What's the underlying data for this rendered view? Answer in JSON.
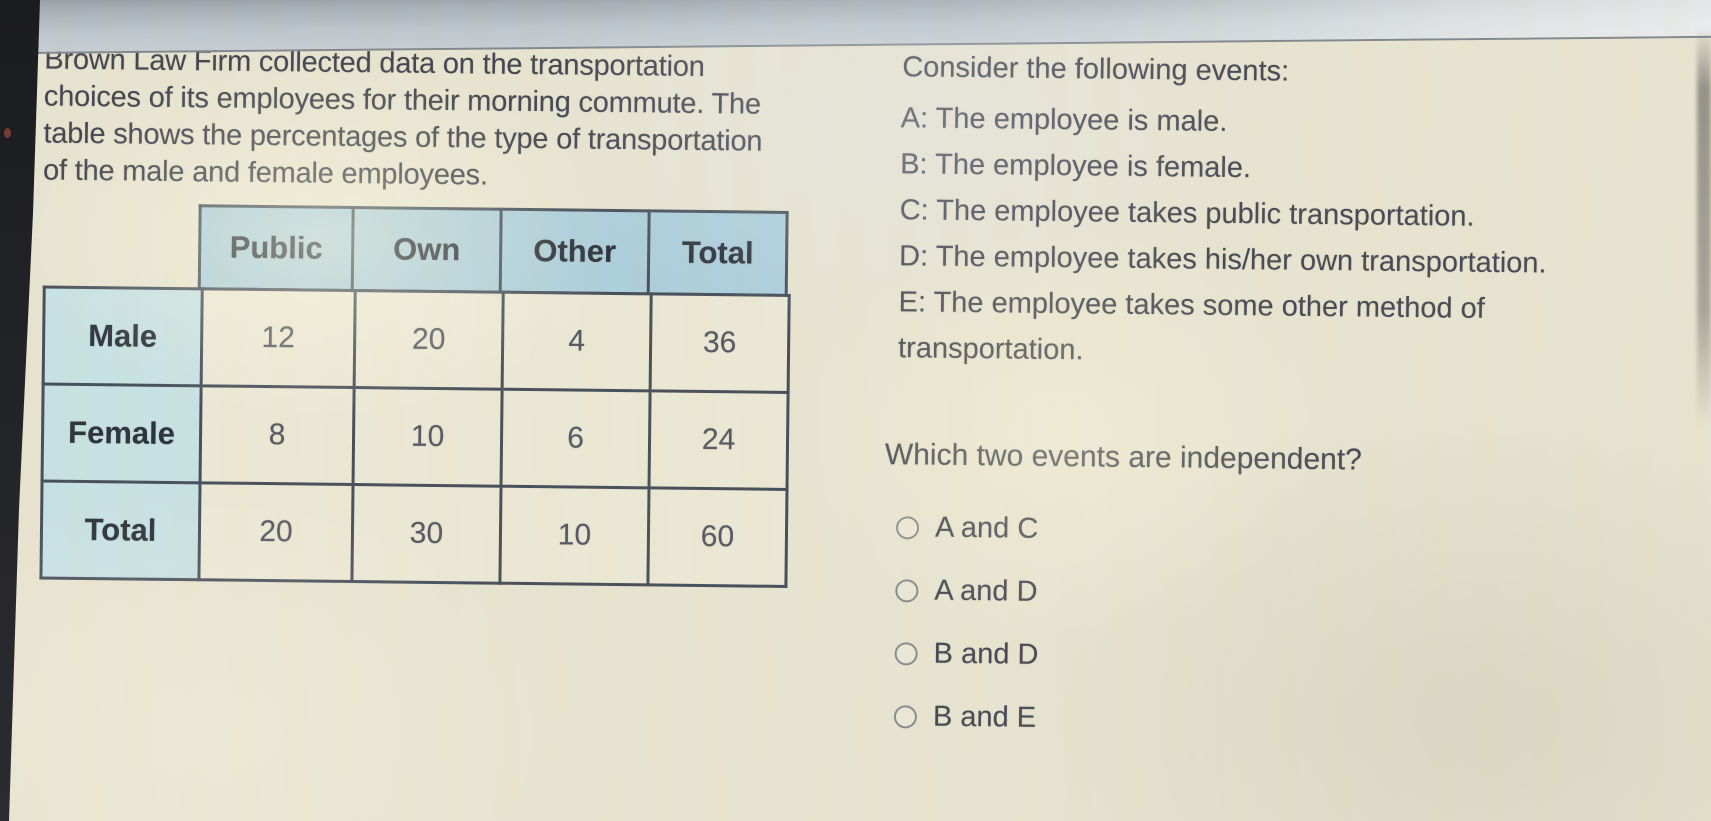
{
  "intro": "Brown Law Firm collected data on the transportation\nchoices of its employees for their morning commute. The\ntable shows the percentages of the type of transportation\nof the male and female employees.",
  "table": {
    "column_headers": [
      "Public",
      "Own",
      "Other",
      "Total"
    ],
    "rows": [
      {
        "label": "Male",
        "values": [
          "12",
          "20",
          "4",
          "36"
        ]
      },
      {
        "label": "Female",
        "values": [
          "8",
          "10",
          "6",
          "24"
        ]
      },
      {
        "label": "Total",
        "values": [
          "20",
          "30",
          "10",
          "60"
        ]
      }
    ]
  },
  "events": {
    "title": "Consider the following events:",
    "items": [
      "A: The employee is male.",
      "B: The employee is female.",
      "C: The employee takes public transportation.",
      "D: The employee takes his/her own transportation.",
      "E: The employee takes some other method of\ntransportation."
    ]
  },
  "prompt": "Which two events are independent?",
  "options": [
    "A and C",
    "A and D",
    "B and D",
    "B and E"
  ],
  "colors": {
    "page_bg": "#e6e2cf",
    "top_bar": "#b7c0c8",
    "table_border": "#3e4754",
    "table_header_bg": "#a9cbd9",
    "row_header_bg": "#c4dfe2",
    "cell_bg": "#eae6d3",
    "text": "#3c3d4a"
  }
}
